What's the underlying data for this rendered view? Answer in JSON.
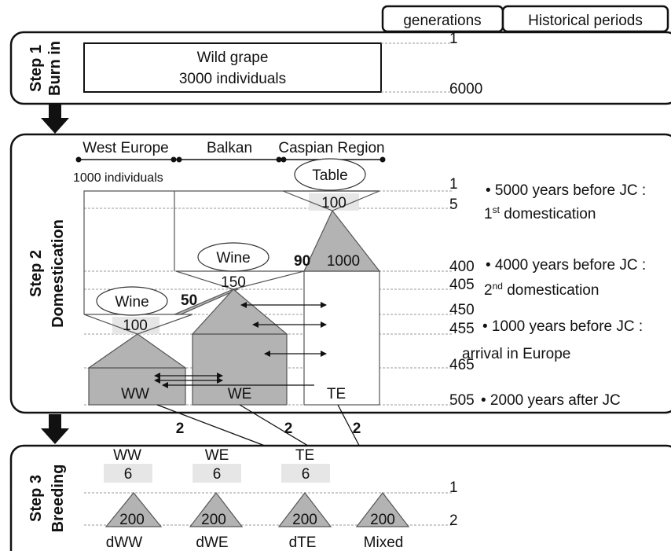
{
  "headers": [
    "generations",
    "Historical periods"
  ],
  "step1": {
    "label": "Step 1",
    "sublabel": "Burn in",
    "box": [
      "Wild grape",
      "3000 individuals"
    ],
    "generations": [
      1,
      6000
    ]
  },
  "step2": {
    "label": "Step 2",
    "sublabel": "Domestication",
    "regions": [
      "West Europe",
      "Balkan",
      "Caspian Region"
    ],
    "size_note": "1000 individuals",
    "populations": [
      {
        "type": "Table",
        "founders": 100,
        "size": 1000,
        "duration": 90
      },
      {
        "type": "Wine",
        "founders": 150,
        "duration": 50
      },
      {
        "type": "Wine",
        "founders": 100
      }
    ],
    "groups": [
      "WW",
      "WE",
      "TE"
    ],
    "generations": [
      1,
      5,
      400,
      405,
      450,
      455,
      465,
      505
    ],
    "periods": [
      {
        "date": "• 5000 years before JC :",
        "event": [
          "1",
          "st",
          " domestication"
        ]
      },
      {
        "date": "• 4000 years before JC :",
        "event": [
          "2",
          "nd",
          " domestication"
        ]
      },
      {
        "date": "• 1000 years before JC :",
        "event": [
          "arrival in Europe"
        ]
      },
      {
        "date": "• 2000 years after JC"
      }
    ]
  },
  "migration": [
    2,
    2,
    2
  ],
  "step3": {
    "label": "Step 3",
    "sublabel": "Breeding",
    "sources": [
      "WW",
      "WE",
      "TE"
    ],
    "founders": [
      6,
      6,
      6
    ],
    "sizes": [
      200,
      200,
      200,
      200
    ],
    "populations": [
      "dWW",
      "dWE",
      "dTE",
      "Mixed"
    ],
    "generations": [
      1,
      2
    ]
  }
}
